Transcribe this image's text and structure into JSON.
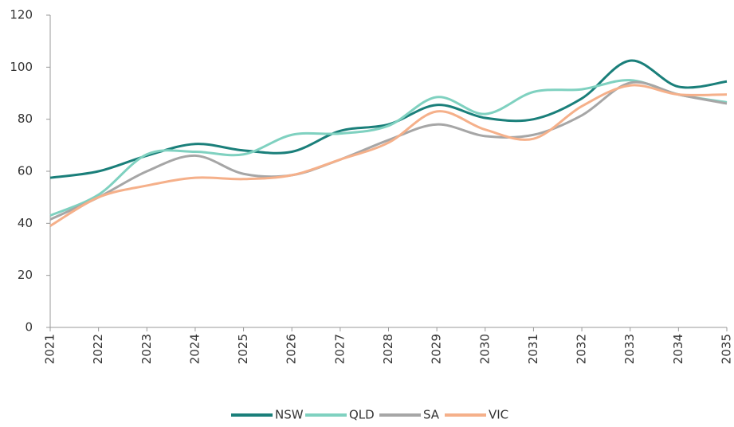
{
  "chart_data": {
    "type": "line",
    "categories": [
      "2021",
      "2022",
      "2023",
      "2024",
      "2025",
      "2026",
      "2027",
      "2028",
      "2029",
      "2030",
      "2031",
      "2032",
      "2033",
      "2034",
      "2035"
    ],
    "series": [
      {
        "name": "NSW",
        "color": "#1a7f7a",
        "values": [
          57.5,
          60,
          66,
          70.5,
          68,
          67.5,
          75.5,
          78,
          85.5,
          80.5,
          80,
          88,
          102.5,
          92.5,
          94.5
        ]
      },
      {
        "name": "QLD",
        "color": "#7fd1c0",
        "values": [
          43,
          51,
          66.5,
          67.5,
          66.5,
          74,
          74.5,
          77.5,
          88.5,
          82,
          90.5,
          91.5,
          95,
          89.5,
          86.5
        ]
      },
      {
        "name": "SA",
        "color": "#a6a6a6",
        "values": [
          41.5,
          50,
          60,
          66,
          59,
          58.5,
          64.5,
          72,
          78,
          73.5,
          74,
          81.5,
          94,
          89.5,
          86
        ]
      },
      {
        "name": "VIC",
        "color": "#f5b08a",
        "values": [
          39,
          50,
          54.5,
          57.5,
          57,
          58.5,
          64.5,
          71,
          83,
          76,
          72.5,
          85,
          93,
          89.5,
          89.5
        ]
      }
    ],
    "ylim": [
      0,
      120
    ],
    "yticks": [
      0,
      20,
      40,
      60,
      80,
      100,
      120
    ],
    "grid": false,
    "legend": "bottom"
  }
}
